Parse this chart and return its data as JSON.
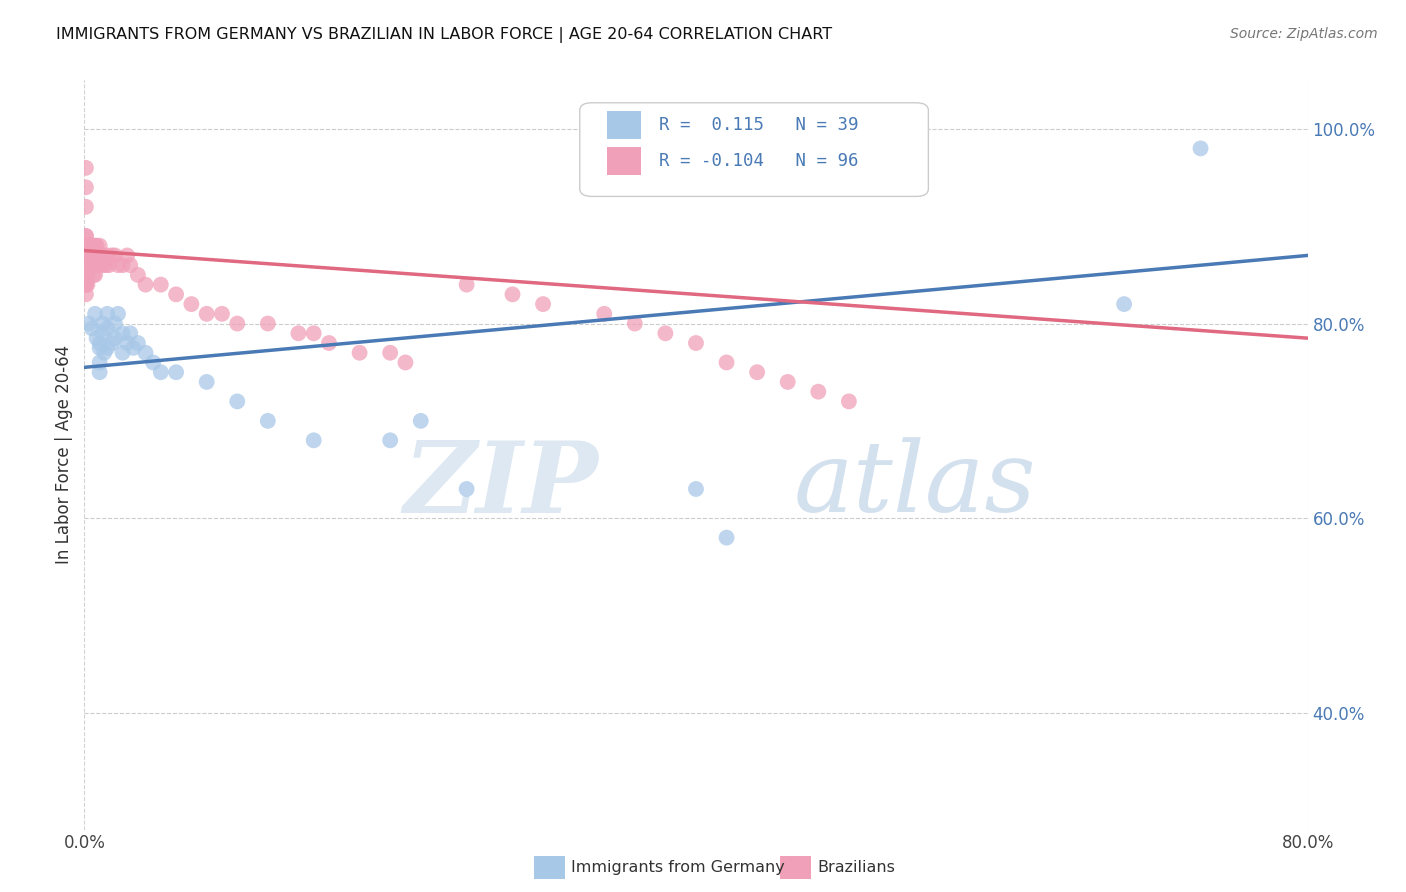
{
  "title": "IMMIGRANTS FROM GERMANY VS BRAZILIAN IN LABOR FORCE | AGE 20-64 CORRELATION CHART",
  "source": "Source: ZipAtlas.com",
  "ylabel": "In Labor Force | Age 20-64",
  "xlim": [
    0.0,
    0.8
  ],
  "ylim": [
    0.28,
    1.05
  ],
  "xticks": [
    0.0,
    0.8
  ],
  "xticklabels": [
    "0.0%",
    "80.0%"
  ],
  "yticks": [
    0.4,
    0.6,
    0.8,
    1.0
  ],
  "yticklabels": [
    "40.0%",
    "60.0%",
    "80.0%",
    "100.0%"
  ],
  "blue_color": "#a8c8e8",
  "pink_color": "#f0a0b8",
  "blue_line_color": "#4a7ab5",
  "pink_line_color": "#e06880",
  "legend_R_blue": "R =  0.115",
  "legend_N_blue": "N = 39",
  "legend_R_pink": "R = -0.104",
  "legend_N_pink": "N = 96",
  "legend_label_blue": "Immigrants from Germany",
  "legend_label_pink": "Brazilians",
  "watermark_zip": "ZIP",
  "watermark_atlas": "atlas",
  "background_color": "#ffffff",
  "grid_color": "#cccccc",
  "blue_x": [
    0.003,
    0.005,
    0.007,
    0.008,
    0.01,
    0.01,
    0.01,
    0.01,
    0.012,
    0.012,
    0.013,
    0.015,
    0.015,
    0.015,
    0.018,
    0.02,
    0.02,
    0.022,
    0.025,
    0.025,
    0.028,
    0.03,
    0.032,
    0.035,
    0.04,
    0.045,
    0.05,
    0.06,
    0.08,
    0.1,
    0.12,
    0.15,
    0.2,
    0.22,
    0.25,
    0.4,
    0.42,
    0.68,
    0.73
  ],
  "blue_y": [
    0.8,
    0.795,
    0.81,
    0.785,
    0.78,
    0.775,
    0.76,
    0.75,
    0.8,
    0.79,
    0.77,
    0.81,
    0.795,
    0.775,
    0.78,
    0.8,
    0.785,
    0.81,
    0.79,
    0.77,
    0.78,
    0.79,
    0.775,
    0.78,
    0.77,
    0.76,
    0.75,
    0.75,
    0.74,
    0.72,
    0.7,
    0.68,
    0.68,
    0.7,
    0.63,
    0.63,
    0.58,
    0.82,
    0.98
  ],
  "pink_x": [
    0.001,
    0.001,
    0.001,
    0.001,
    0.001,
    0.001,
    0.001,
    0.001,
    0.001,
    0.001,
    0.001,
    0.001,
    0.001,
    0.001,
    0.001,
    0.001,
    0.001,
    0.001,
    0.001,
    0.001,
    0.002,
    0.002,
    0.002,
    0.002,
    0.002,
    0.002,
    0.002,
    0.002,
    0.002,
    0.002,
    0.003,
    0.003,
    0.003,
    0.003,
    0.003,
    0.003,
    0.003,
    0.003,
    0.004,
    0.004,
    0.004,
    0.004,
    0.005,
    0.005,
    0.005,
    0.005,
    0.006,
    0.006,
    0.006,
    0.007,
    0.007,
    0.007,
    0.008,
    0.008,
    0.009,
    0.009,
    0.01,
    0.01,
    0.012,
    0.012,
    0.014,
    0.015,
    0.016,
    0.018,
    0.02,
    0.022,
    0.025,
    0.028,
    0.03,
    0.035,
    0.04,
    0.05,
    0.06,
    0.07,
    0.08,
    0.09,
    0.1,
    0.12,
    0.14,
    0.15,
    0.16,
    0.18,
    0.2,
    0.21,
    0.25,
    0.28,
    0.3,
    0.34,
    0.36,
    0.38,
    0.4,
    0.42,
    0.44,
    0.46,
    0.48,
    0.5
  ],
  "pink_y": [
    0.87,
    0.89,
    0.92,
    0.94,
    0.96,
    0.87,
    0.88,
    0.89,
    0.87,
    0.86,
    0.85,
    0.84,
    0.83,
    0.87,
    0.86,
    0.85,
    0.84,
    0.87,
    0.88,
    0.86,
    0.87,
    0.88,
    0.86,
    0.87,
    0.86,
    0.85,
    0.84,
    0.87,
    0.86,
    0.86,
    0.87,
    0.88,
    0.86,
    0.87,
    0.88,
    0.86,
    0.87,
    0.86,
    0.87,
    0.88,
    0.87,
    0.86,
    0.87,
    0.88,
    0.86,
    0.88,
    0.88,
    0.87,
    0.85,
    0.87,
    0.88,
    0.85,
    0.87,
    0.88,
    0.87,
    0.86,
    0.87,
    0.88,
    0.87,
    0.86,
    0.86,
    0.87,
    0.86,
    0.87,
    0.87,
    0.86,
    0.86,
    0.87,
    0.86,
    0.85,
    0.84,
    0.84,
    0.83,
    0.82,
    0.81,
    0.81,
    0.8,
    0.8,
    0.79,
    0.79,
    0.78,
    0.77,
    0.77,
    0.76,
    0.84,
    0.83,
    0.82,
    0.81,
    0.8,
    0.79,
    0.78,
    0.76,
    0.75,
    0.74,
    0.73,
    0.72
  ],
  "blue_trendline_x": [
    0.0,
    0.8
  ],
  "blue_trendline_y": [
    0.755,
    0.87
  ],
  "pink_trendline_x": [
    0.0,
    0.8
  ],
  "pink_trendline_y": [
    0.875,
    0.785
  ]
}
